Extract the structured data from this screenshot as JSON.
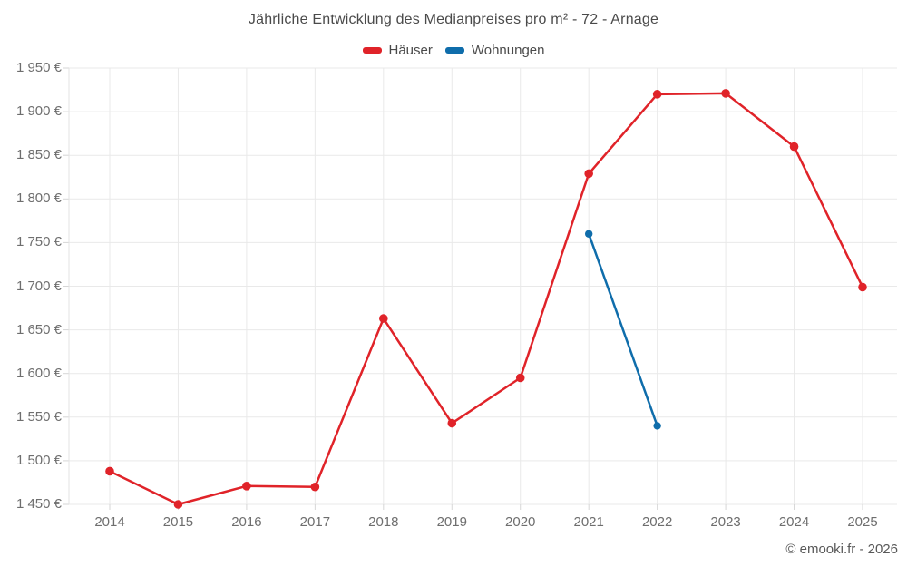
{
  "header": {
    "title": "Jährliche Entwicklung des Medianpreises pro m² - 72 - Arnage"
  },
  "footer": {
    "copyright": "© emooki.fr - 2026"
  },
  "colors": {
    "grid": "#e9e9e9",
    "axis": "#e3e3e3",
    "tick": "#d6d6d6",
    "hauser_red": "#e02329",
    "wohnungen_blue": "#0f6dab"
  },
  "chart_data": {
    "type": "line",
    "title": "Jährliche Entwicklung des Medianpreises pro m² - 72 - Arnage",
    "categories": [
      "2014",
      "2015",
      "2016",
      "2017",
      "2018",
      "2019",
      "2020",
      "2021",
      "2022",
      "2023",
      "2024",
      "2025"
    ],
    "series": [
      {
        "name": "Häuser",
        "color": "#e02329",
        "values": [
          1488,
          1450,
          1471,
          1470,
          1663,
          1543,
          1595,
          1829,
          1920,
          1921,
          1860,
          1699
        ]
      },
      {
        "name": "Wohnungen",
        "color": "#0f6dab",
        "values": [
          null,
          null,
          null,
          null,
          null,
          null,
          null,
          1760,
          1540,
          null,
          null,
          null
        ]
      }
    ],
    "xlabel": "",
    "ylabel": "",
    "ylim": [
      1450,
      1950
    ],
    "ytick_step": 50,
    "ytick_labels": [
      "1 450 €",
      "1 500 €",
      "1 550 €",
      "1 600 €",
      "1 650 €",
      "1 700 €",
      "1 750 €",
      "1 800 €",
      "1 850 €",
      "1 900 €",
      "1 950 €"
    ],
    "grid": true,
    "legend_position": "top"
  }
}
